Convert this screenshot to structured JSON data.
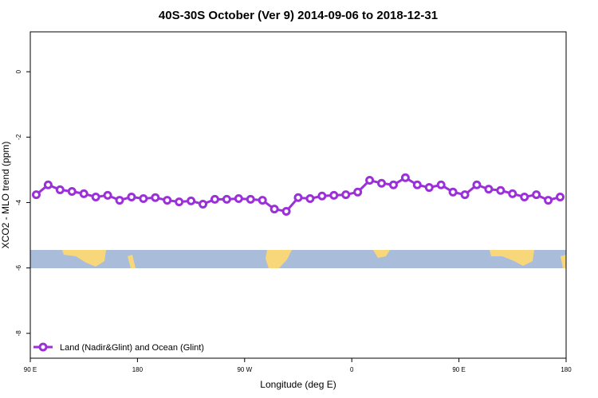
{
  "chart_data": {
    "type": "line",
    "title": "40S-30S October (Ver 9)   2014-09-06 to 2018-12-31",
    "xlabel": "Longitude (deg E)",
    "ylabel": "XCO2 - MLO trend (ppm)",
    "x": [
      95,
      105,
      115,
      125,
      135,
      145,
      155,
      165,
      175,
      185,
      195,
      205,
      215,
      225,
      235,
      245,
      255,
      265,
      275,
      285,
      295,
      305,
      315,
      325,
      335,
      345,
      355,
      365,
      375,
      385,
      395,
      405,
      415,
      425,
      435,
      445,
      455,
      465,
      475,
      485,
      495,
      505,
      515,
      525,
      535
    ],
    "series": [
      {
        "name": "Land (Nadir&Glint) and Ocean (Glint)",
        "color": "#9b30d9",
        "values": [
          -3.76,
          -3.46,
          -3.61,
          -3.66,
          -3.73,
          -3.83,
          -3.78,
          -3.93,
          -3.83,
          -3.88,
          -3.85,
          -3.93,
          -3.98,
          -3.95,
          -4.05,
          -3.9,
          -3.9,
          -3.88,
          -3.9,
          -3.93,
          -4.2,
          -4.27,
          -3.85,
          -3.88,
          -3.8,
          -3.78,
          -3.76,
          -3.68,
          -3.32,
          -3.41,
          -3.46,
          -3.24,
          -3.46,
          -3.54,
          -3.46,
          -3.68,
          -3.76,
          -3.46,
          -3.59,
          -3.63,
          -3.73,
          -3.83,
          -3.76,
          -3.93,
          -3.83
        ]
      }
    ],
    "xlim": [
      90,
      540
    ],
    "xticks": [
      {
        "value": 90,
        "label": "90 E"
      },
      180,
      {
        "value": 270,
        "label": "90 W"
      },
      {
        "value": 360,
        "label": "0"
      },
      {
        "value": 450,
        "label": "90 E"
      },
      {
        "value": 540,
        "label": "180"
      }
    ],
    "ylim": [
      -8.76,
      1.22
    ],
    "yticks": [
      0,
      -2,
      -4,
      -6,
      -8
    ],
    "legend": "bottom-left"
  }
}
